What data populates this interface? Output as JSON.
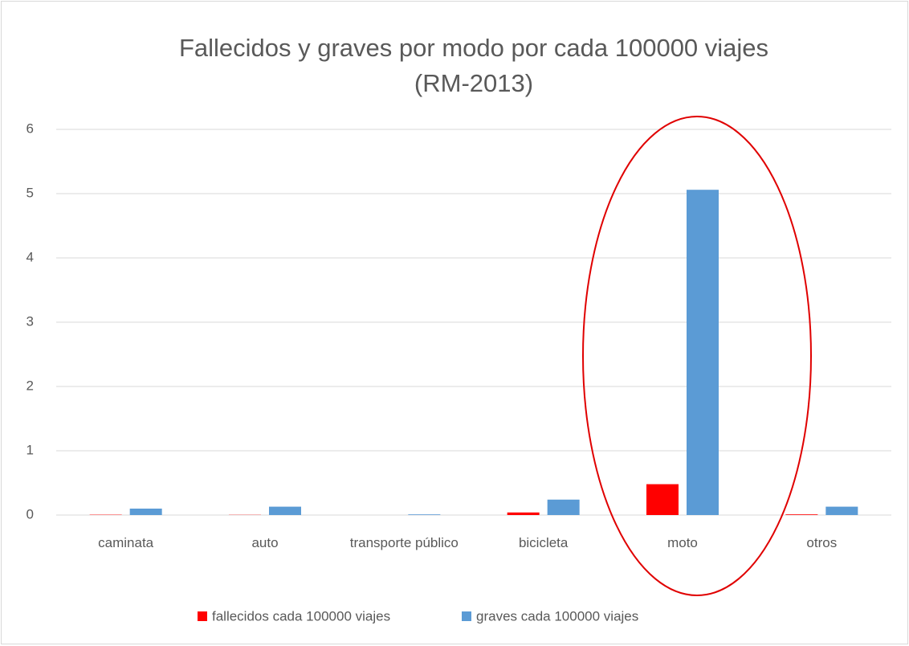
{
  "chart_data": {
    "type": "bar",
    "title": "Fallecidos y graves por modo por cada 100000 viajes",
    "subtitle": "(RM-2013)",
    "categories": [
      "caminata",
      "auto",
      "transporte público",
      "bicicleta",
      "moto",
      "otros"
    ],
    "series": [
      {
        "name": "fallecidos cada 100000 viajes",
        "color": "#ff0000",
        "values": [
          0.005,
          0.003,
          0,
          0.04,
          0.48,
          0.01
        ]
      },
      {
        "name": "graves cada 100000 viajes",
        "color": "#5b9bd5",
        "values": [
          0.1,
          0.13,
          0.01,
          0.24,
          5.06,
          0.13
        ]
      }
    ],
    "ylim": [
      0,
      6
    ],
    "yticks": [
      0,
      1,
      2,
      3,
      4,
      5,
      6
    ],
    "grid": true,
    "legend": "bottom"
  }
}
